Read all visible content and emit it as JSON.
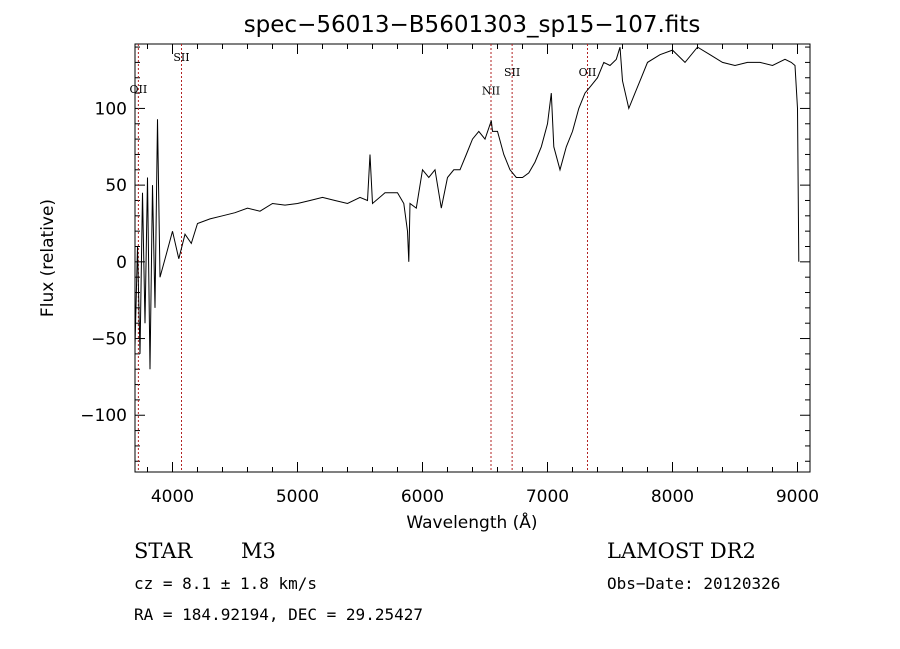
{
  "chart_data": {
    "type": "line",
    "title": "spec−56013−B5601303_sp15−107.fits",
    "xlabel": "Wavelength (Å)",
    "ylabel": "Flux (relative)",
    "xlim": [
      3700,
      9100
    ],
    "ylim": [
      -137,
      142
    ],
    "x_ticks": [
      4000,
      5000,
      6000,
      7000,
      8000,
      9000
    ],
    "x_tick_labels": [
      "4000",
      "5000",
      "6000",
      "7000",
      "8000",
      "9000"
    ],
    "y_ticks": [
      -100,
      -50,
      0,
      50,
      100
    ],
    "y_tick_labels": [
      "−100",
      "−50",
      "0",
      "50",
      "100"
    ],
    "grid": false,
    "series": [
      {
        "x": [
          3700,
          3720,
          3740,
          3760,
          3780,
          3800,
          3820,
          3840,
          3860,
          3880,
          3900,
          3950,
          4000,
          4050,
          4100,
          4150,
          4200,
          4300,
          4400,
          4500,
          4600,
          4700,
          4800,
          4900,
          5000,
          5100,
          5200,
          5300,
          5400,
          5500,
          5560,
          5580,
          5600,
          5700,
          5800,
          5850,
          5880,
          5890,
          5900,
          5950,
          6000,
          6050,
          6100,
          6150,
          6200,
          6250,
          6300,
          6350,
          6400,
          6450,
          6500,
          6550,
          6560,
          6600,
          6650,
          6700,
          6750,
          6800,
          6850,
          6900,
          6950,
          7000,
          7030,
          7050,
          7100,
          7150,
          7200,
          7250,
          7300,
          7350,
          7400,
          7450,
          7500,
          7550,
          7580,
          7600,
          7650,
          7700,
          7750,
          7800,
          7900,
          8000,
          8100,
          8200,
          8300,
          8400,
          8500,
          8600,
          8700,
          8800,
          8900,
          8950,
          8980,
          9000,
          9010
        ],
        "y": [
          -55,
          10,
          -60,
          45,
          -40,
          55,
          -70,
          50,
          -30,
          93,
          -10,
          5,
          20,
          2,
          18,
          12,
          25,
          28,
          30,
          32,
          35,
          33,
          38,
          37,
          38,
          40,
          42,
          40,
          38,
          42,
          40,
          70,
          38,
          45,
          45,
          38,
          20,
          0,
          38,
          35,
          60,
          55,
          60,
          35,
          55,
          60,
          60,
          70,
          80,
          85,
          80,
          92,
          85,
          85,
          70,
          60,
          55,
          55,
          58,
          65,
          75,
          90,
          110,
          75,
          60,
          75,
          85,
          100,
          110,
          115,
          120,
          130,
          128,
          132,
          140,
          118,
          100,
          110,
          120,
          130,
          135,
          138,
          130,
          140,
          135,
          130,
          128,
          130,
          130,
          128,
          132,
          130,
          128,
          100,
          0
        ]
      }
    ],
    "line_markers": [
      {
        "label": "OII",
        "x": 3727,
        "label_y": 110
      },
      {
        "label": "SII",
        "x": 4072,
        "label_y": 131
      },
      {
        "label": "NII",
        "x": 6548,
        "label_y": 109
      },
      {
        "label": "SII",
        "x": 6717,
        "label_y": 121
      },
      {
        "label": "OII",
        "x": 7320,
        "label_y": 121
      }
    ],
    "marker_color": "#b22222",
    "line_color": "#000000"
  },
  "info": {
    "object_class": "STAR",
    "subclass": "M3",
    "survey": "LAMOST DR2",
    "redshift": "cz = 8.1 ± 1.8 km/s",
    "obs_date": "Obs−Date: 20120326",
    "coords": "RA = 184.92194, DEC =  29.25427"
  }
}
